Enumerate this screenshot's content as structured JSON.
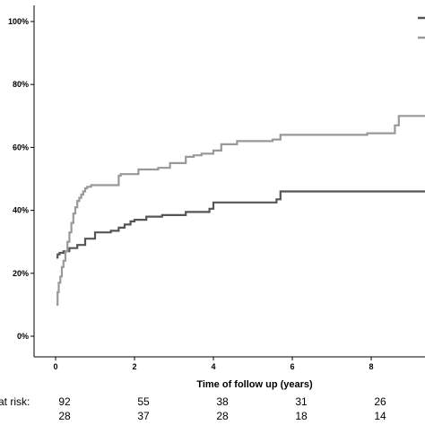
{
  "chart_data": {
    "type": "line",
    "title": "",
    "xlabel": "Time of follow up (years)",
    "ylabel": "",
    "xlim": [
      0,
      9.6
    ],
    "ylim": [
      0,
      100
    ],
    "x_ticks": [
      0,
      2,
      4,
      6,
      8
    ],
    "x_tick_labels": [
      "0",
      "2",
      "4",
      "6",
      "8"
    ],
    "y_ticks": [
      0,
      20,
      40,
      60,
      80,
      100
    ],
    "y_tick_labels": [
      "0%",
      "20%",
      "40%",
      "60%",
      "80%",
      "100%"
    ],
    "grid": false,
    "legend": {
      "placement": "top-right"
    },
    "series": [
      {
        "color": "#555555",
        "x": [
          0.02,
          0.05,
          0.1,
          0.2,
          0.35,
          0.55,
          0.75,
          1.0,
          1.4,
          1.6,
          1.75,
          1.9,
          2.0,
          2.3,
          2.7,
          3.3,
          3.9,
          4.0,
          5.6,
          5.7,
          9.6
        ],
        "y": [
          25,
          26,
          26.5,
          27,
          28,
          29,
          31,
          33,
          33.5,
          34.5,
          35.5,
          36.5,
          37,
          38,
          38.5,
          39.5,
          40.5,
          42.5,
          43.5,
          46,
          46
        ]
      },
      {
        "color": "#999999",
        "x": [
          0.02,
          0.05,
          0.08,
          0.12,
          0.16,
          0.2,
          0.25,
          0.3,
          0.35,
          0.4,
          0.45,
          0.5,
          0.55,
          0.6,
          0.65,
          0.7,
          0.75,
          0.8,
          0.9,
          1.0,
          1.6,
          1.65,
          2.0,
          2.1,
          2.6,
          2.9,
          3.3,
          3.5,
          3.7,
          4.0,
          4.2,
          4.6,
          5.5,
          5.7,
          7.9,
          8.6,
          8.7,
          9.6
        ],
        "y": [
          10,
          14,
          17,
          19,
          22,
          24,
          27,
          30,
          33,
          36,
          39,
          41,
          43,
          44,
          45,
          46,
          47,
          47.5,
          48,
          48,
          51,
          51.5,
          51.5,
          53,
          53.5,
          55,
          57,
          57.5,
          58,
          59,
          61,
          62,
          62.5,
          64,
          64.5,
          67,
          70,
          70
        ]
      }
    ],
    "annotations": {
      "risk_title": "at risk:",
      "risk_rows": [
        {
          "color": "#555555",
          "values": [
            "92",
            "55",
            "38",
            "31",
            "26"
          ]
        },
        {
          "color": "#999999",
          "values": [
            "28",
            "37",
            "28",
            "18",
            "14"
          ]
        }
      ]
    }
  }
}
